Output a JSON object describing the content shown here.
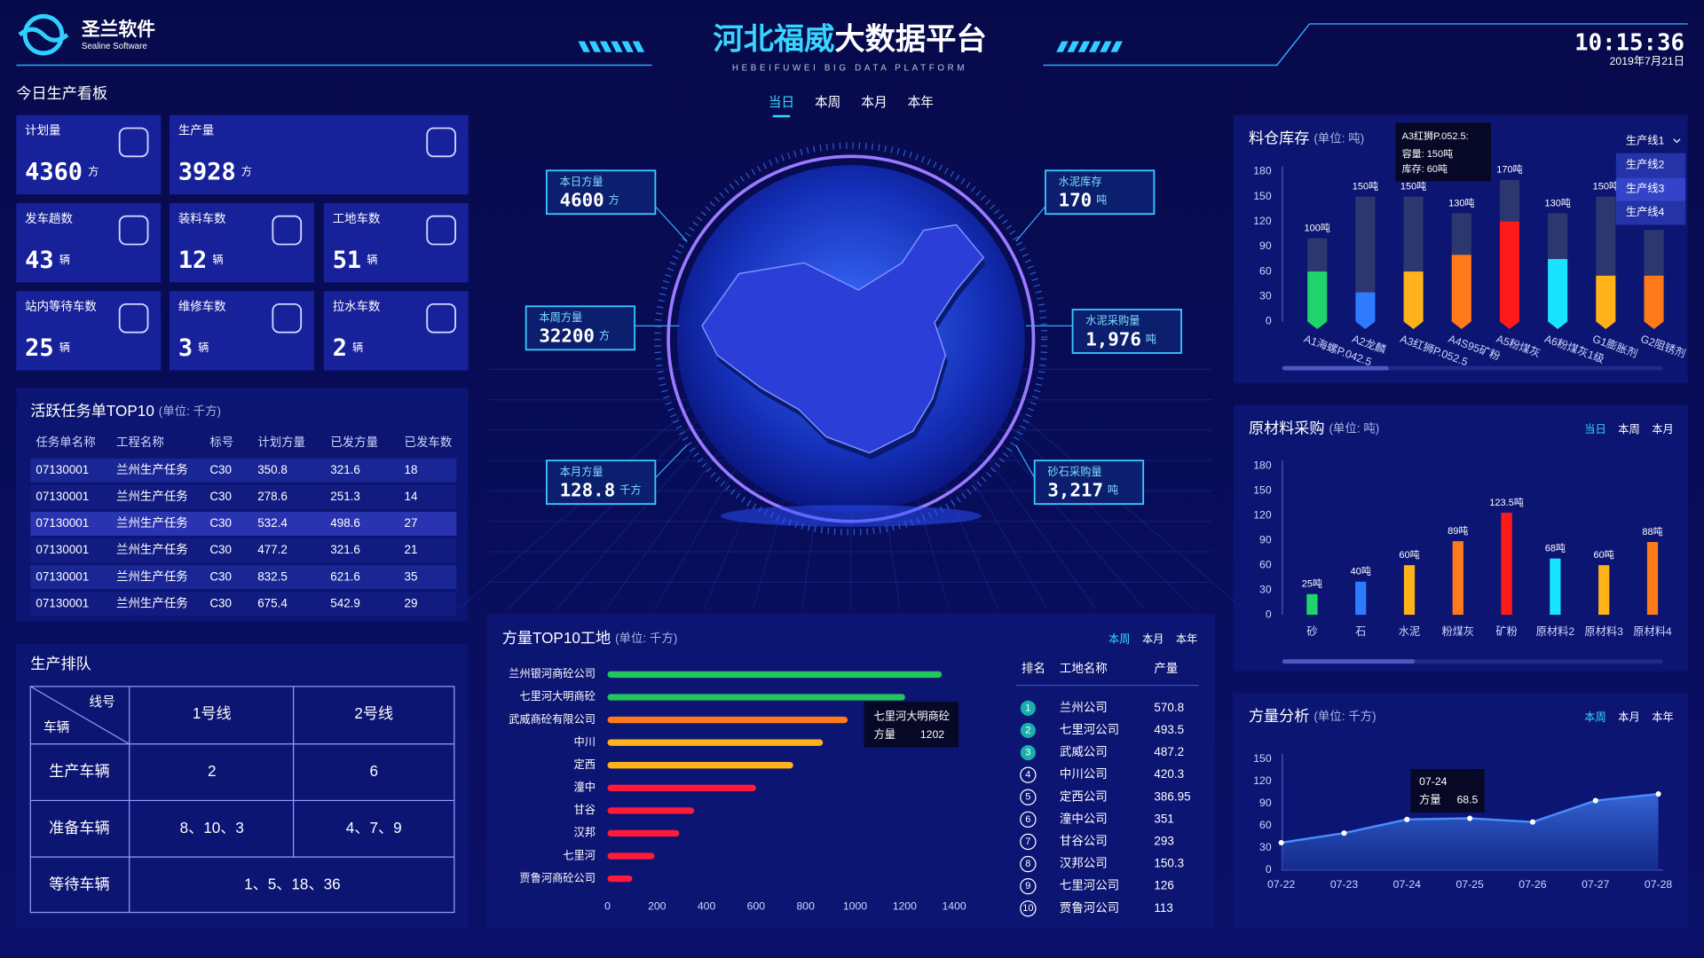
{
  "header": {
    "logo": "圣兰软件",
    "logo_sub": "Sealine Software",
    "title_highlight": "河北福威",
    "title": "大数据平台",
    "subtitle": "HEBEIFUWEI BIG DATA PLATFORM",
    "time": "10:15:36",
    "date": "2019年7月21日"
  },
  "period_tabs": [
    "当日",
    "本周",
    "本月",
    "本年"
  ],
  "today_board": {
    "title": "今日生产看板",
    "cards": [
      {
        "label": "计划量",
        "value": 4360,
        "unit": "方"
      },
      {
        "label": "生产量",
        "value": 3928,
        "unit": "方"
      },
      {
        "label": "发车趟数",
        "value": 43,
        "unit": "辆"
      },
      {
        "label": "装料车数",
        "value": 12,
        "unit": "辆"
      },
      {
        "label": "工地车数",
        "value": 51,
        "unit": "辆"
      },
      {
        "label": "站内等待车数",
        "value": 25,
        "unit": "辆"
      },
      {
        "label": "维修车数",
        "value": 3,
        "unit": "辆"
      },
      {
        "label": "拉水车数",
        "value": 2,
        "unit": "辆"
      }
    ]
  },
  "tasks": {
    "title": "活跃任务单TOP10",
    "unit": "(单位: 千方)",
    "columns": [
      "任务单名称",
      "工程名称",
      "标号",
      "计划方量",
      "已发方量",
      "已发车数"
    ],
    "rows": [
      [
        "07130001",
        "兰州生产任务",
        "C30",
        350.8,
        321.6,
        18
      ],
      [
        "07130001",
        "兰州生产任务",
        "C30",
        278.6,
        251.3,
        14
      ],
      [
        "07130001",
        "兰州生产任务",
        "C30",
        532.4,
        498.6,
        27
      ],
      [
        "07130001",
        "兰州生产任务",
        "C30",
        477.2,
        321.6,
        21
      ],
      [
        "07130001",
        "兰州生产任务",
        "C30",
        832.5,
        621.6,
        35
      ],
      [
        "07130001",
        "兰州生产任务",
        "C30",
        675.4,
        542.9,
        29
      ]
    ]
  },
  "queue": {
    "title": "生产排队",
    "corner_top": "线号",
    "corner_bottom": "车辆",
    "columns": [
      "1号线",
      "2号线"
    ],
    "rows": [
      {
        "label": "生产车辆",
        "cells": [
          2,
          6
        ]
      },
      {
        "label": "准备车辆",
        "cells": [
          "8、10、3",
          "4、7、9"
        ]
      },
      {
        "label": "等待车辆",
        "cells": [
          "1、5、18、36"
        ]
      }
    ]
  },
  "globe": {
    "stats": [
      {
        "label": "本日方量",
        "value": 4600,
        "unit": "方"
      },
      {
        "label": "本周方量",
        "value": 32200,
        "unit": "方"
      },
      {
        "label": "本月方量",
        "value": 128.8,
        "unit": "千方"
      },
      {
        "label": "水泥库存",
        "value": 170,
        "unit": "吨"
      },
      {
        "label": "水泥采购量",
        "value": "1,976",
        "unit": "吨"
      },
      {
        "label": "砂石采购量",
        "value": "3,217",
        "unit": "吨"
      }
    ]
  },
  "site_table": {
    "columns": [
      "排名",
      "工地名称",
      "产量"
    ],
    "rows": [
      [
        1,
        "兰州公司",
        570.8
      ],
      [
        2,
        "七里河公司",
        493.5
      ],
      [
        3,
        "武威公司",
        487.2
      ],
      [
        4,
        "中川公司",
        420.3
      ],
      [
        5,
        "定西公司",
        386.95
      ],
      [
        6,
        "潼中公司",
        351
      ],
      [
        7,
        "甘谷公司",
        293
      ],
      [
        8,
        "汉邦公司",
        150.3
      ],
      [
        9,
        "七里河公司",
        126
      ],
      [
        10,
        "贾鲁河公司",
        113
      ]
    ]
  },
  "chart_data": [
    {
      "type": "bar",
      "title": "料仓库存",
      "unit": "(单位: 吨)",
      "categories": [
        "A1海螺P.042.5",
        "A2龙麟",
        "A3红狮P.052.5",
        "A4S95矿粉",
        "A5粉煤灰",
        "A6粉煤灰1级",
        "G1膨胀剂",
        "G2阻锈剂"
      ],
      "series": [
        {
          "name": "容量",
          "color": "#2d376f",
          "values": [
            100,
            150,
            150,
            130,
            170,
            130,
            150,
            110
          ],
          "value_labels": [
            "100吨",
            "150吨",
            "150吨",
            "130吨",
            "170吨",
            "130吨",
            "150吨",
            null
          ]
        },
        {
          "name": "库存",
          "colors": [
            "#1fd46a",
            "#2f7bff",
            "#ffb21a",
            "#ff7a1a",
            "#ff1a1a",
            "#18e4ff",
            "#ffb21a",
            "#ff7a1a"
          ],
          "values": [
            60,
            35,
            60,
            80,
            120,
            75,
            55,
            55
          ]
        }
      ],
      "ylim": [
        0,
        180
      ],
      "yticks": [
        0,
        30,
        60,
        90,
        120,
        150,
        180
      ],
      "tooltip": {
        "title": "A3红狮P.052.5:",
        "lines": [
          "容量: 150吨",
          "库存: 60吨"
        ]
      },
      "dropdown": {
        "selected": "生产线1",
        "options": [
          "生产线2",
          "生产线3",
          "生产线4"
        ]
      }
    },
    {
      "type": "bar",
      "title": "原材料采购",
      "unit": "(单位: 吨)",
      "tabs": [
        "当日",
        "本周",
        "本月"
      ],
      "categories": [
        "砂",
        "石",
        "水泥",
        "粉煤灰",
        "矿粉",
        "原材料2",
        "原材料3",
        "原材料4"
      ],
      "values": [
        25,
        40,
        60,
        89,
        123.5,
        68,
        60,
        88
      ],
      "value_labels": [
        "25吨",
        "40吨",
        "60吨",
        "89吨",
        "123.5吨",
        "68吨",
        "60吨",
        "88吨"
      ],
      "colors": [
        "#1fd46a",
        "#2f7bff",
        "#ffb21a",
        "#ff7a1a",
        "#ff1a1a",
        "#18e4ff",
        "#ffb21a",
        "#ff7a1a"
      ],
      "ylim": [
        0,
        180
      ],
      "yticks": [
        0,
        30,
        60,
        90,
        120,
        150,
        180
      ]
    },
    {
      "type": "bar",
      "horizontal": true,
      "title": "方量TOP10工地",
      "unit": "(单位: 千方)",
      "tabs": [
        "本周",
        "本月",
        "本年"
      ],
      "categories": [
        "兰州银河商砼公司",
        "七里河大明商砼",
        "武威商砼有限公司",
        "中川",
        "定西",
        "潼中",
        "甘谷",
        "汉邦",
        "七里河",
        "贾鲁河商砼公司"
      ],
      "values": [
        1350,
        1202,
        970,
        870,
        750,
        600,
        350,
        290,
        190,
        100
      ],
      "colors": [
        "#22c55e",
        "#22c55e",
        "#ff7a1a",
        "#ffb21a",
        "#ffb21a",
        "#ff1a3a",
        "#ff1a3a",
        "#ff1a3a",
        "#ff1a3a",
        "#ff1a3a"
      ],
      "xlim": [
        0,
        1400
      ],
      "xticks": [
        0,
        200,
        400,
        600,
        800,
        1000,
        1200,
        1400
      ],
      "tooltip": {
        "category": "七里河大明商砼",
        "label": "方量",
        "value": 1202
      }
    },
    {
      "type": "area",
      "title": "方量分析",
      "unit": "(单位: 千方)",
      "tabs": [
        "本周",
        "本月",
        "本年"
      ],
      "x": [
        "07-22",
        "07-23",
        "07-24",
        "07-25",
        "07-26",
        "07-27",
        "07-28"
      ],
      "values": [
        37,
        50,
        68.5,
        70,
        65,
        94,
        103
      ],
      "color": "#4a8cff",
      "ylim": [
        0,
        150
      ],
      "yticks": [
        0,
        30,
        60,
        90,
        120,
        150
      ],
      "tooltip": {
        "x": "07-24",
        "label": "方量",
        "value": 68.5
      }
    }
  ]
}
